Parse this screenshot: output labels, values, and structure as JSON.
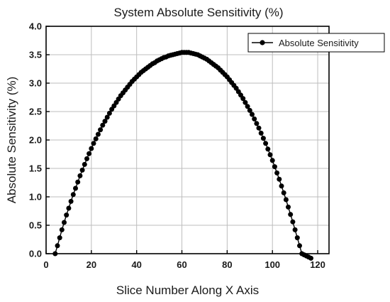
{
  "chart_data": {
    "type": "scatter",
    "title": "System Absolute Sensitivity (%)",
    "xlabel": "Slice Number Along X Axis",
    "ylabel": "Absolute Sensitivity (%)",
    "xlim": [
      0,
      125
    ],
    "ylim": [
      0,
      4.0
    ],
    "xticks": [
      0,
      20,
      40,
      60,
      80,
      100,
      120
    ],
    "xtick_labels": [
      "0",
      "20",
      "40",
      "60",
      "80",
      "100",
      "120"
    ],
    "yticks": [
      0,
      0.5,
      1.0,
      1.5,
      2.0,
      2.5,
      3.0,
      3.5,
      4.0
    ],
    "ytick_labels": [
      "0.0",
      "0.5",
      "1.0",
      "1.5",
      "2.0",
      "2.5",
      "3.0",
      "3.5",
      "4.0"
    ],
    "grid": true,
    "legend_position": "top-right",
    "series": [
      {
        "name": "Absolute Sensitivity",
        "color": "#000000",
        "marker": "circle",
        "x": [
          4,
          5,
          6,
          7,
          8,
          9,
          10,
          11,
          12,
          13,
          14,
          15,
          16,
          17,
          18,
          19,
          20,
          21,
          22,
          23,
          24,
          25,
          26,
          27,
          28,
          29,
          30,
          31,
          32,
          33,
          34,
          35,
          36,
          37,
          38,
          39,
          40,
          41,
          42,
          43,
          44,
          45,
          46,
          47,
          48,
          49,
          50,
          51,
          52,
          53,
          54,
          55,
          56,
          57,
          58,
          59,
          60,
          61,
          62,
          63,
          64,
          65,
          66,
          67,
          68,
          69,
          70,
          71,
          72,
          73,
          74,
          75,
          76,
          77,
          78,
          79,
          80,
          81,
          82,
          83,
          84,
          85,
          86,
          87,
          88,
          89,
          90,
          91,
          92,
          93,
          94,
          95,
          96,
          97,
          98,
          99,
          100,
          101,
          102,
          103,
          104,
          105,
          106,
          107,
          108,
          109,
          110,
          111,
          112,
          113,
          114,
          115,
          116,
          117
        ],
        "values": [
          0.0,
          0.14,
          0.28,
          0.42,
          0.55,
          0.68,
          0.8,
          0.92,
          1.04,
          1.15,
          1.26,
          1.37,
          1.47,
          1.57,
          1.67,
          1.76,
          1.85,
          1.94,
          2.02,
          2.1,
          2.18,
          2.26,
          2.33,
          2.4,
          2.47,
          2.54,
          2.6,
          2.66,
          2.72,
          2.78,
          2.83,
          2.88,
          2.93,
          2.98,
          3.03,
          3.07,
          3.11,
          3.15,
          3.19,
          3.22,
          3.25,
          3.28,
          3.31,
          3.34,
          3.36,
          3.39,
          3.41,
          3.43,
          3.45,
          3.46,
          3.48,
          3.49,
          3.5,
          3.51,
          3.52,
          3.53,
          3.54,
          3.54,
          3.54,
          3.54,
          3.53,
          3.52,
          3.51,
          3.5,
          3.48,
          3.46,
          3.44,
          3.42,
          3.39,
          3.36,
          3.33,
          3.3,
          3.27,
          3.23,
          3.19,
          3.15,
          3.11,
          3.06,
          3.01,
          2.96,
          2.91,
          2.85,
          2.79,
          2.73,
          2.66,
          2.59,
          2.52,
          2.45,
          2.37,
          2.29,
          2.21,
          2.12,
          2.03,
          1.94,
          1.84,
          1.74,
          1.64,
          1.53,
          1.42,
          1.31,
          1.19,
          1.07,
          0.95,
          0.82,
          0.69,
          0.56,
          0.42,
          0.28,
          0.14,
          0.0,
          -0.02,
          -0.04,
          -0.06,
          -0.08
        ]
      }
    ]
  }
}
